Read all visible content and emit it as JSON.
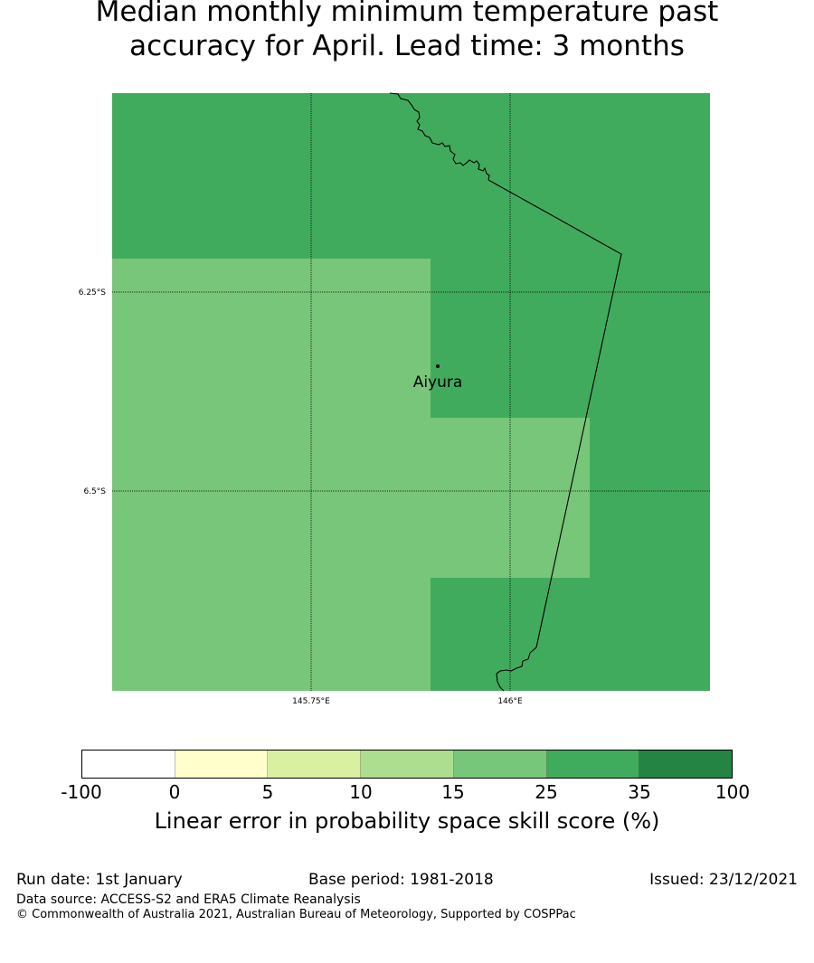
{
  "title": {
    "line1": "Median monthly minimum temperature past",
    "line2": "accuracy for April. Lead time: 3 months"
  },
  "map": {
    "colors": {
      "low_band": "#78c679",
      "high_band": "#41ab5d"
    },
    "lat_labels": [
      "6.25°S",
      "6.5°S"
    ],
    "lon_labels": [
      "145.75°E",
      "146°E"
    ],
    "place": {
      "name": "Aiyura"
    }
  },
  "colorbar": {
    "boundaries": [
      "-100",
      "0",
      "5",
      "10",
      "15",
      "25",
      "35",
      "100"
    ],
    "colors": [
      "#ffffff",
      "#ffffcc",
      "#d9f0a3",
      "#addd8e",
      "#78c679",
      "#41ab5d",
      "#238443"
    ],
    "label": "Linear error in probability space skill score (%)"
  },
  "footer": {
    "run_date": "Run date: 1st January",
    "base_period": "Base period: 1981-2018",
    "issued": "Issued: 23/12/2021",
    "data_source": "Data source: ACCESS-S2 and ERA5 Climate Reanalysis",
    "copyright": "© Commonwealth of Australia 2021, Australian Bureau of Meteorology, Supported by COSPPac"
  }
}
